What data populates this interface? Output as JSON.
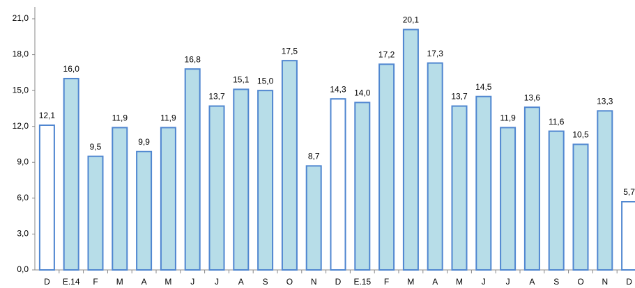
{
  "chart_data": {
    "type": "bar",
    "categories": [
      "D",
      "E.14",
      "F",
      "M",
      "A",
      "M",
      "J",
      "J",
      "A",
      "S",
      "O",
      "N",
      "D",
      "E.15",
      "F",
      "M",
      "A",
      "M",
      "J",
      "J",
      "A",
      "S",
      "O",
      "N",
      "D"
    ],
    "values": [
      12.1,
      16.0,
      9.5,
      11.9,
      9.9,
      11.9,
      16.8,
      13.7,
      15.1,
      15.0,
      17.5,
      8.7,
      14.3,
      14.0,
      17.2,
      20.1,
      17.3,
      13.7,
      14.5,
      11.9,
      13.6,
      11.6,
      10.5,
      13.3,
      5.7
    ],
    "value_labels": [
      "12,1",
      "16,0",
      "9,5",
      "11,9",
      "9,9",
      "11,9",
      "16,8",
      "13,7",
      "15,1",
      "15,0",
      "17,5",
      "8,7",
      "14,3",
      "14,0",
      "17,2",
      "20,1",
      "17,3",
      "13,7",
      "14,5",
      "11,9",
      "13,6",
      "11,6",
      "10,5",
      "13,3",
      "5,7"
    ],
    "colors": [
      "#ffffff",
      "#b7dde8",
      "#b7dde8",
      "#b7dde8",
      "#b7dde8",
      "#b7dde8",
      "#b7dde8",
      "#b7dde8",
      "#b7dde8",
      "#b7dde8",
      "#b7dde8",
      "#b7dde8",
      "#ffffff",
      "#b7dde8",
      "#b7dde8",
      "#b7dde8",
      "#b7dde8",
      "#b7dde8",
      "#b7dde8",
      "#b7dde8",
      "#b7dde8",
      "#b7dde8",
      "#b7dde8",
      "#b7dde8",
      "#ffffff"
    ],
    "edge_color": "#4f86d0",
    "ylim": [
      0,
      21
    ],
    "yticks": [
      {
        "value": 0,
        "label": "0,0"
      },
      {
        "value": 3,
        "label": "3,0"
      },
      {
        "value": 6,
        "label": "6,0"
      },
      {
        "value": 9,
        "label": "9,0"
      },
      {
        "value": 12,
        "label": "12,0"
      },
      {
        "value": 15,
        "label": "15,0"
      },
      {
        "value": 18,
        "label": "18,0"
      },
      {
        "value": 21,
        "label": "21,0"
      }
    ],
    "grid": false
  }
}
